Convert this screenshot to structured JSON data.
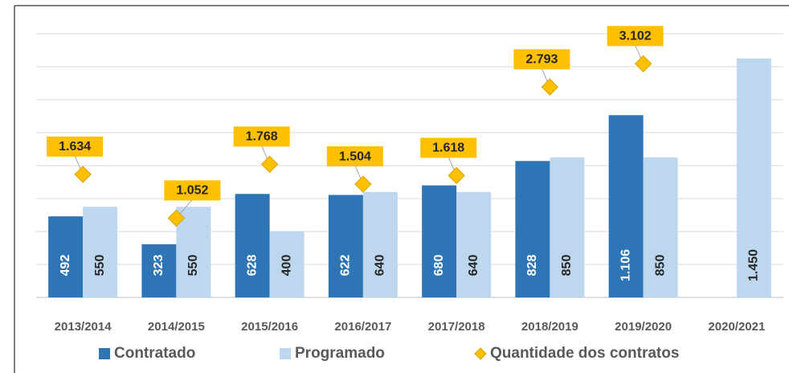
{
  "chart_data": {
    "type": "bar",
    "categories": [
      "2013/2014",
      "2014/2015",
      "2015/2016",
      "2016/2017",
      "2017/2018",
      "2018/2019",
      "2019/2020",
      "2020/2021"
    ],
    "series": [
      {
        "name": "Contratado",
        "color": "#2e75b6",
        "values": [
          492,
          323,
          628,
          622,
          680,
          828,
          1106,
          null
        ],
        "value_labels": [
          "492",
          "323",
          "628",
          "622",
          "680",
          "828",
          "1.106",
          null
        ]
      },
      {
        "name": "Programado",
        "color": "#bdd7ee",
        "values": [
          550,
          550,
          400,
          640,
          640,
          850,
          850,
          1450
        ],
        "value_labels": [
          "550",
          "550",
          "400",
          "640",
          "640",
          "850",
          "850",
          "1.450"
        ]
      },
      {
        "name": "Quantidade dos contratos",
        "type": "scatter",
        "axis": "y2",
        "color": "#ffc000",
        "values": [
          1634,
          1052,
          1768,
          1504,
          1618,
          2793,
          3102,
          null
        ],
        "value_labels": [
          "1.634",
          "1.052",
          "1.768",
          "1.504",
          "1.618",
          "2.793",
          "3.102",
          null
        ]
      }
    ],
    "ylim": [
      0,
      1600
    ],
    "yticks": [
      0,
      200,
      400,
      600,
      800,
      1000,
      1200,
      1400,
      1600
    ],
    "y2lim": [
      0,
      3500
    ],
    "grid": true,
    "legend": "bottom"
  }
}
